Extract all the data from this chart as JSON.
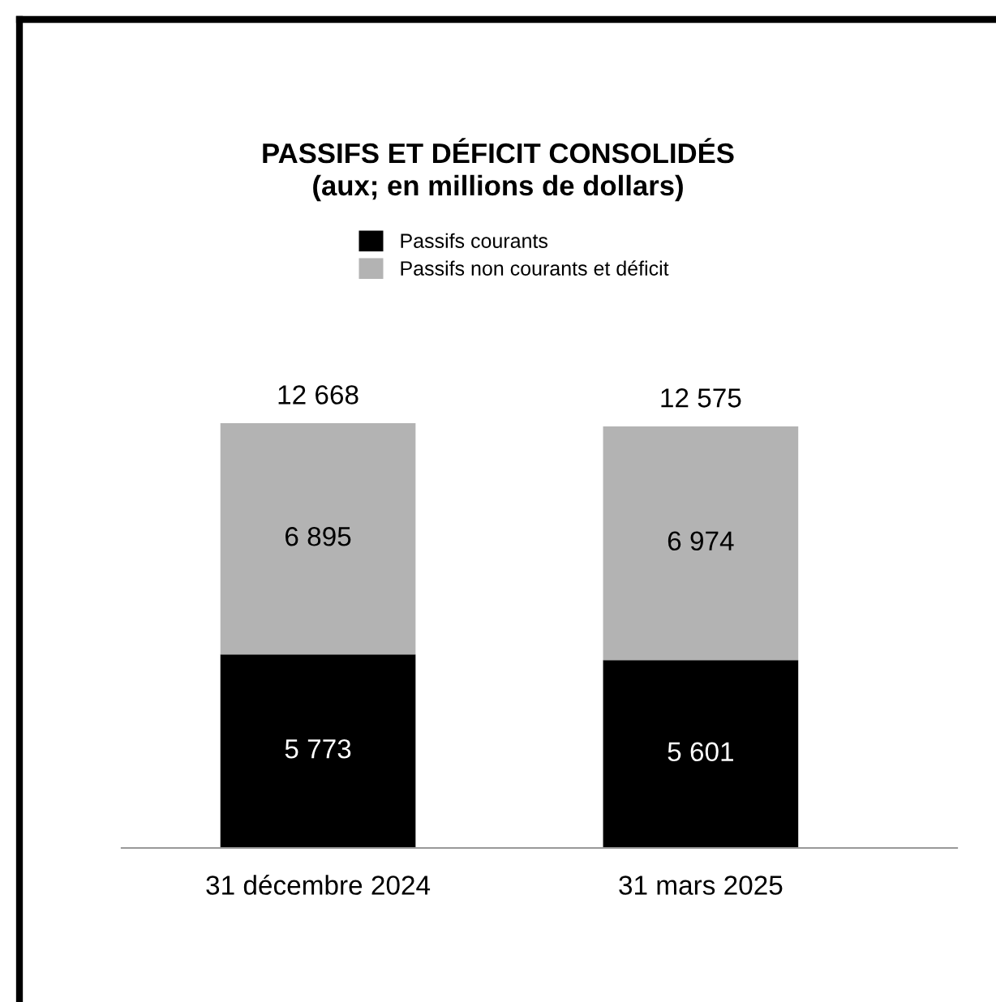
{
  "chart_data": {
    "type": "bar",
    "title": "PASSIFS ET DÉFICIT CONSOLIDÉS\n(aux; en millions de dollars)",
    "categories": [
      "31 décembre 2024",
      "31 mars 2025"
    ],
    "stacked": true,
    "data_labels": true,
    "legend": "top",
    "grid": false,
    "series": [
      {
        "name": "Passifs courants",
        "color": "#000000",
        "values": [
          5773,
          5601
        ],
        "value_labels": [
          "5 773",
          "5 601"
        ]
      },
      {
        "name": "Passifs non courants et déficit",
        "color": "#b3b3b3",
        "values": [
          6895,
          6974
        ],
        "value_labels": [
          "6 895",
          "6 974"
        ]
      }
    ],
    "totals": [
      "12 668",
      "12 575"
    ]
  }
}
